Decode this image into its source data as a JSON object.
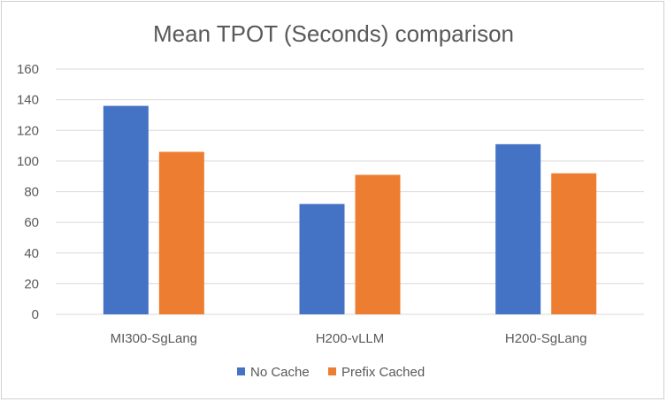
{
  "chart_data": {
    "type": "bar",
    "title": "Mean TPOT (Seconds) comparison",
    "xlabel": "",
    "ylabel": "",
    "categories": [
      "MI300-SgLang",
      "H200-vLLM",
      "H200-SgLang"
    ],
    "series": [
      {
        "name": "No Cache",
        "values": [
          136,
          72,
          111
        ],
        "color": "#4472C4"
      },
      {
        "name": "Prefix Cached",
        "values": [
          106,
          91,
          92
        ],
        "color": "#ED7D31"
      }
    ],
    "ylim": [
      0,
      160
    ],
    "yticks": [
      0,
      20,
      40,
      60,
      80,
      100,
      120,
      140,
      160
    ],
    "grid": true,
    "legend_position": "bottom"
  }
}
